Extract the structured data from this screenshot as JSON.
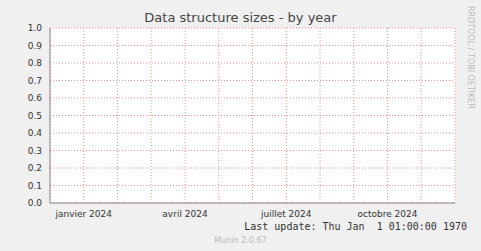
{
  "chart_data": {
    "type": "line",
    "title": "Data structure sizes - by year",
    "categories": [
      null,
      "janvier 2024",
      null,
      null,
      "avril 2024",
      null,
      null,
      "juillet 2024",
      null,
      null,
      "octobre 2024",
      null,
      null
    ],
    "values": [
      null,
      null,
      null,
      null,
      null,
      null,
      null,
      null,
      null,
      null,
      null,
      null,
      null
    ],
    "ylim": [
      0,
      1
    ],
    "yticks": [
      {
        "value": 0,
        "label": "0.0"
      },
      {
        "value": 0.1,
        "label": "0.1"
      },
      {
        "value": 0.2,
        "label": "0.2"
      },
      {
        "value": 0.3,
        "label": "0.3"
      },
      {
        "value": 0.4,
        "label": "0.4"
      },
      {
        "value": 0.5,
        "label": "0.5"
      },
      {
        "value": 0.6,
        "label": "0.6"
      },
      {
        "value": 0.7,
        "label": "0.7"
      },
      {
        "value": 0.8,
        "label": "0.8"
      },
      {
        "value": 0.9,
        "label": "0.9"
      },
      {
        "value": 1,
        "label": "1.0"
      }
    ],
    "grid": true,
    "annotations": [
      "Last update: Thu Jan  1 01:00:00 1970",
      "Munin 2.0.67",
      "RRDTOOL / TOBI OETIKER"
    ]
  }
}
